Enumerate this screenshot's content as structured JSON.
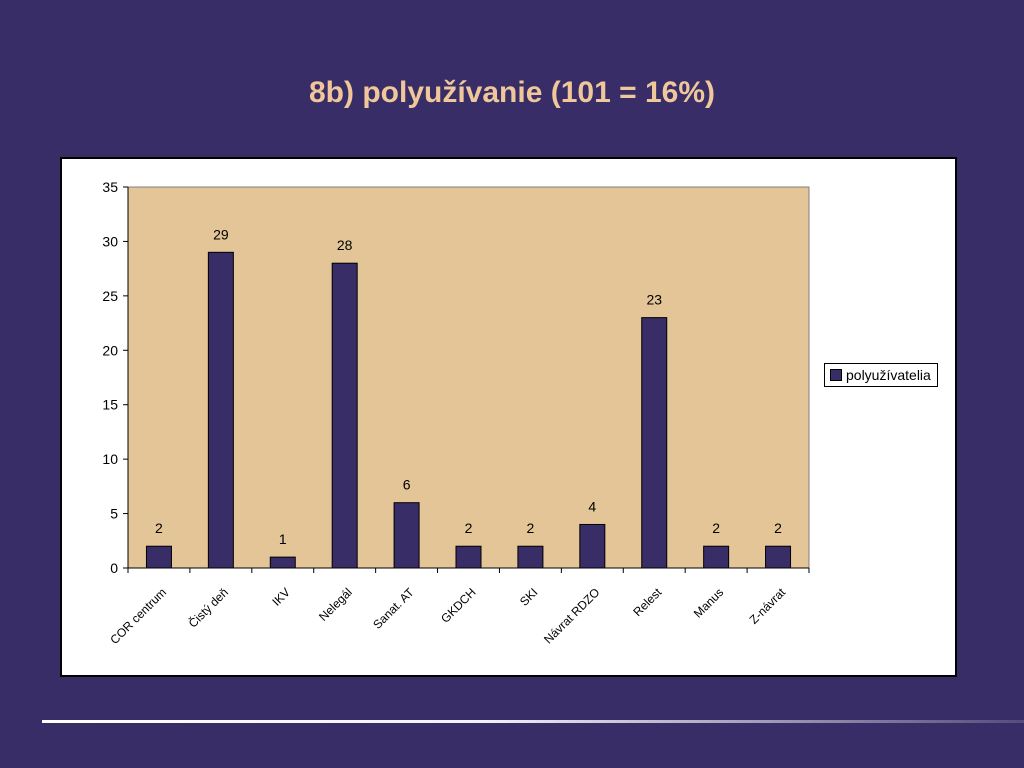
{
  "slide": {
    "title": "8b) polyužívanie (101 = 16%)"
  },
  "colors": {
    "background": "#382d66",
    "title": "#efc79a",
    "plot_area": "#e4c597",
    "bar": "#382d66"
  },
  "chart_data": {
    "type": "bar",
    "categories": [
      "COR centrum",
      "Čistý deň",
      "IKV",
      "Nelegál",
      "Sanat. AT",
      "GKDCH",
      "SKI",
      "Návrat RDZO",
      "Relest",
      "Manus",
      "Z-návrat"
    ],
    "series": [
      {
        "name": "polyužívatelia",
        "values": [
          2,
          29,
          1,
          28,
          6,
          2,
          2,
          4,
          23,
          2,
          2
        ]
      }
    ],
    "data_labels": true,
    "ylim": [
      0,
      35
    ],
    "yticks": [
      0,
      5,
      10,
      15,
      20,
      25,
      30,
      35
    ],
    "grid": false,
    "legend": "right"
  }
}
